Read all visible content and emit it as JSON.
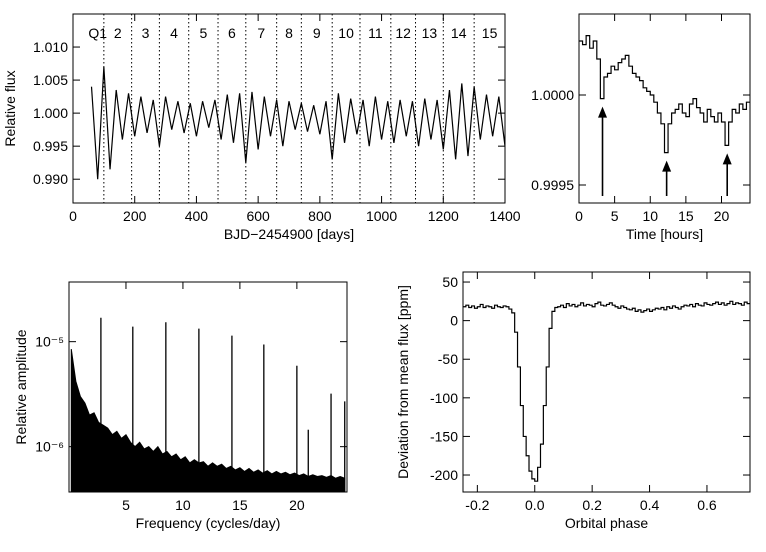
{
  "chart_data": [
    {
      "type": "line",
      "ylabel": "Relative flux",
      "xlabel": "BJD−2454900 [days]",
      "color": "#000000",
      "xlim": [
        0,
        1400
      ],
      "ylim": [
        0.9864,
        1.015
      ],
      "xticks": [
        0,
        200,
        400,
        600,
        800,
        1000,
        1200,
        1400
      ],
      "yticks": [
        {
          "value": 0.99,
          "label": "0.990"
        },
        {
          "value": 0.995,
          "label": "0.995"
        },
        {
          "value": 1,
          "label": "1.000"
        },
        {
          "value": 1.005,
          "label": "1.005"
        },
        {
          "value": 1.01,
          "label": "1.010"
        }
      ],
      "quarter_boundaries": [
        100,
        190,
        280,
        375,
        470,
        560,
        660,
        740,
        840,
        930,
        1030,
        1110,
        1200,
        1300
      ],
      "quarter_labels": [
        "Q1",
        "2",
        "3",
        "4",
        "5",
        "6",
        "7",
        "8",
        "9",
        "10",
        "11",
        "12",
        "13",
        "14",
        "15"
      ],
      "x": [
        60,
        80,
        100,
        120,
        140,
        160,
        180,
        200,
        220,
        240,
        260,
        280,
        300,
        320,
        340,
        360,
        380,
        400,
        420,
        440,
        460,
        480,
        500,
        520,
        540,
        560,
        580,
        600,
        620,
        640,
        660,
        680,
        700,
        720,
        740,
        760,
        780,
        800,
        820,
        840,
        860,
        880,
        900,
        920,
        940,
        960,
        980,
        1000,
        1020,
        1040,
        1060,
        1080,
        1100,
        1120,
        1140,
        1160,
        1180,
        1200,
        1220,
        1240,
        1260,
        1280,
        1300,
        1320,
        1340,
        1360,
        1380,
        1400
      ],
      "values": [
        1.004,
        0.99,
        1.007,
        0.9915,
        1.0035,
        0.996,
        1.003,
        0.9965,
        1.0025,
        0.997,
        1.002,
        0.995,
        1.0025,
        0.9975,
        1.0018,
        0.997,
        1.0015,
        0.9965,
        1.0018,
        0.9978,
        1.002,
        0.996,
        1.0028,
        0.9955,
        1.003,
        0.9925,
        1.0032,
        0.9945,
        1.0025,
        0.9965,
        1.002,
        0.995,
        1.0018,
        0.9975,
        1.0015,
        0.9972,
        1.0012,
        0.9968,
        1.0018,
        0.993,
        1.003,
        0.9955,
        1.0022,
        0.9968,
        1.002,
        0.995,
        1.0025,
        0.996,
        1.0018,
        0.9955,
        1.002,
        0.9965,
        1.0018,
        0.995,
        1.0022,
        0.996,
        1.002,
        0.9945,
        1.0035,
        0.993,
        1.0045,
        0.9935,
        1.004,
        0.996,
        1.0028,
        0.9965,
        1.0025,
        0.995
      ]
    },
    {
      "type": "step",
      "xlabel": "Time [hours]",
      "color": "#000000",
      "xlim": [
        0,
        24
      ],
      "ylim": [
        0.9994,
        1.00045
      ],
      "xticks": [
        0,
        5,
        10,
        15,
        20
      ],
      "yticks": [
        0.9995,
        {
          "value": 1,
          "label": "1.0000"
        }
      ],
      "arrows": [
        3.3,
        12.3,
        20.8
      ],
      "x": [
        0,
        0.5,
        1,
        1.5,
        2,
        2.5,
        3,
        3.5,
        4,
        4.5,
        5,
        5.5,
        6,
        6.5,
        7,
        7.5,
        8,
        8.5,
        9,
        9.5,
        10,
        10.5,
        11,
        11.5,
        12,
        12.5,
        13,
        13.5,
        14,
        14.5,
        15,
        15.5,
        16,
        16.5,
        17,
        17.5,
        18,
        18.5,
        19,
        19.5,
        20,
        20.5,
        21,
        21.5,
        22,
        22.5,
        23,
        23.5
      ],
      "values": [
        1.0003,
        1.00028,
        1.00033,
        1.00026,
        1.0003,
        1.0002,
        0.99998,
        1.0001,
        1.00012,
        1.00016,
        1.00014,
        1.00018,
        1.0002,
        1.00022,
        1.00016,
        1.00012,
        1.0001,
        1.00008,
        1.00004,
        1.00002,
        1,
        0.99996,
        0.9999,
        0.99984,
        0.99968,
        0.99984,
        0.9999,
        0.99992,
        0.99995,
        0.9999,
        0.99988,
        0.99995,
        0.99998,
        0.99993,
        0.9999,
        0.99985,
        0.99992,
        0.99988,
        0.99985,
        0.9999,
        0.99985,
        0.99972,
        0.99985,
        0.99992,
        0.9999,
        0.99995,
        0.99992,
        0.99996
      ]
    },
    {
      "type": "periodogram",
      "ylabel": "Relative amplitude",
      "xlabel": "Frequency (cycles/day)",
      "color": "#000000",
      "log": true,
      "xlim": [
        0,
        24.4
      ],
      "ylim": [
        3.7e-07,
        3.7e-05
      ],
      "xticks": [
        5,
        10,
        15,
        20
      ],
      "yticks": [
        {
          "value": 1e-06,
          "label": "10⁻⁶"
        },
        {
          "value": 1e-05,
          "label": "10⁻⁵"
        }
      ],
      "x": [
        0.2,
        0.6,
        1.0,
        1.4,
        1.8,
        2.2,
        2.6,
        3.0,
        3.4,
        3.8,
        4.2,
        4.6,
        5.0,
        5.4,
        5.8,
        6.2,
        6.6,
        7.0,
        7.4,
        7.8,
        8.2,
        8.6,
        9.0,
        9.4,
        9.8,
        10.2,
        10.6,
        11.0,
        11.4,
        11.8,
        12.2,
        12.6,
        13.0,
        13.4,
        13.8,
        14.2,
        14.6,
        15.0,
        15.4,
        15.8,
        16.2,
        16.6,
        17.0,
        17.4,
        17.8,
        18.2,
        18.6,
        19.0,
        19.4,
        19.8,
        20.2,
        20.6,
        21.0,
        21.4,
        21.8,
        22.2,
        22.6,
        23.0,
        23.4,
        23.8,
        24.2
      ],
      "values": [
        8.5e-06,
        4.2e-06,
        3e-06,
        2.6e-06,
        2e-06,
        2.1e-06,
        1.7e-06,
        1.6e-06,
        1.5e-06,
        1.3e-06,
        1.4e-06,
        1.2e-06,
        1.3e-06,
        1.1e-06,
        1e-06,
        1.1e-06,
        9.5e-07,
        1e-06,
        9e-07,
        1e-06,
        8.5e-07,
        9e-07,
        8e-07,
        8.5e-07,
        7.5e-07,
        8e-07,
        7e-07,
        7.5e-07,
        7e-07,
        7.2e-07,
        6.5e-07,
        7e-07,
        6.5e-07,
        6.8e-07,
        6.2e-07,
        6.5e-07,
        6e-07,
        6.3e-07,
        5.8e-07,
        6.2e-07,
        5.7e-07,
        6e-07,
        5.6e-07,
        5.9e-07,
        5.5e-07,
        5.8e-07,
        5.5e-07,
        5.7e-07,
        5.4e-07,
        5.6e-07,
        5.3e-07,
        5.5e-07,
        5.2e-07,
        5.4e-07,
        5.2e-07,
        5.3e-07,
        5.1e-07,
        5.3e-07,
        5e-07,
        5.2e-07,
        5e-07
      ],
      "peaks": {
        "x": [
          2.8,
          5.6,
          8.5,
          11.4,
          14.3,
          17.1,
          20.0,
          21.0,
          23.0,
          24.2
        ],
        "values": [
          1.69e-05,
          1.39e-05,
          1.53e-05,
          1.33e-05,
          1.14e-05,
          9.4e-06,
          5.9e-06,
          1.45e-06,
          3.2e-06,
          2.7e-06
        ]
      }
    },
    {
      "type": "step",
      "ylabel": "Deviation from mean flux [ppm]",
      "xlabel": "Orbital phase",
      "color": "#000000",
      "xlim": [
        -0.25,
        0.75
      ],
      "ylim": [
        -222,
        63
      ],
      "xticks": [
        -0.2,
        {
          "value": 0,
          "label": "0.0"
        },
        0.2,
        0.4,
        0.6
      ],
      "yticks": [
        -200,
        -150,
        -100,
        -50,
        0,
        50
      ],
      "x": [
        -0.25,
        -0.24,
        -0.23,
        -0.22,
        -0.21,
        -0.2,
        -0.19,
        -0.18,
        -0.17,
        -0.16,
        -0.15,
        -0.14,
        -0.13,
        -0.12,
        -0.11,
        -0.1,
        -0.09,
        -0.08,
        -0.07,
        -0.06,
        -0.05,
        -0.04,
        -0.03,
        -0.02,
        -0.01,
        0,
        0.01,
        0.02,
        0.03,
        0.04,
        0.05,
        0.06,
        0.07,
        0.08,
        0.09,
        0.1,
        0.11,
        0.12,
        0.13,
        0.14,
        0.15,
        0.16,
        0.17,
        0.18,
        0.19,
        0.2,
        0.21,
        0.22,
        0.23,
        0.24,
        0.25,
        0.26,
        0.27,
        0.28,
        0.29,
        0.3,
        0.31,
        0.32,
        0.33,
        0.34,
        0.35,
        0.36,
        0.37,
        0.38,
        0.39,
        0.4,
        0.41,
        0.42,
        0.43,
        0.44,
        0.45,
        0.46,
        0.47,
        0.48,
        0.49,
        0.5,
        0.51,
        0.52,
        0.53,
        0.54,
        0.55,
        0.56,
        0.57,
        0.58,
        0.59,
        0.6,
        0.61,
        0.62,
        0.63,
        0.64,
        0.65,
        0.66,
        0.67,
        0.68,
        0.69,
        0.7,
        0.71,
        0.72,
        0.73,
        0.74
      ],
      "values": [
        18,
        20,
        17,
        19,
        16,
        18,
        21,
        17,
        19,
        18,
        16,
        20,
        18,
        17,
        19,
        18,
        15,
        10,
        -15,
        -60,
        -110,
        -150,
        -175,
        -195,
        -205,
        -208,
        -190,
        -160,
        -110,
        -60,
        -10,
        12,
        17,
        18,
        20,
        17,
        22,
        19,
        21,
        18,
        20,
        23,
        19,
        21,
        20,
        18,
        22,
        24,
        20,
        19,
        21,
        23,
        20,
        18,
        16,
        19,
        17,
        15,
        14,
        16,
        12,
        14,
        11,
        13,
        15,
        12,
        14,
        16,
        15,
        17,
        14,
        18,
        16,
        19,
        17,
        15,
        18,
        20,
        19,
        21,
        18,
        22,
        20,
        19,
        23,
        21,
        20,
        22,
        24,
        21,
        23,
        20,
        22,
        25,
        21,
        23,
        22,
        20,
        24,
        22
      ]
    }
  ]
}
